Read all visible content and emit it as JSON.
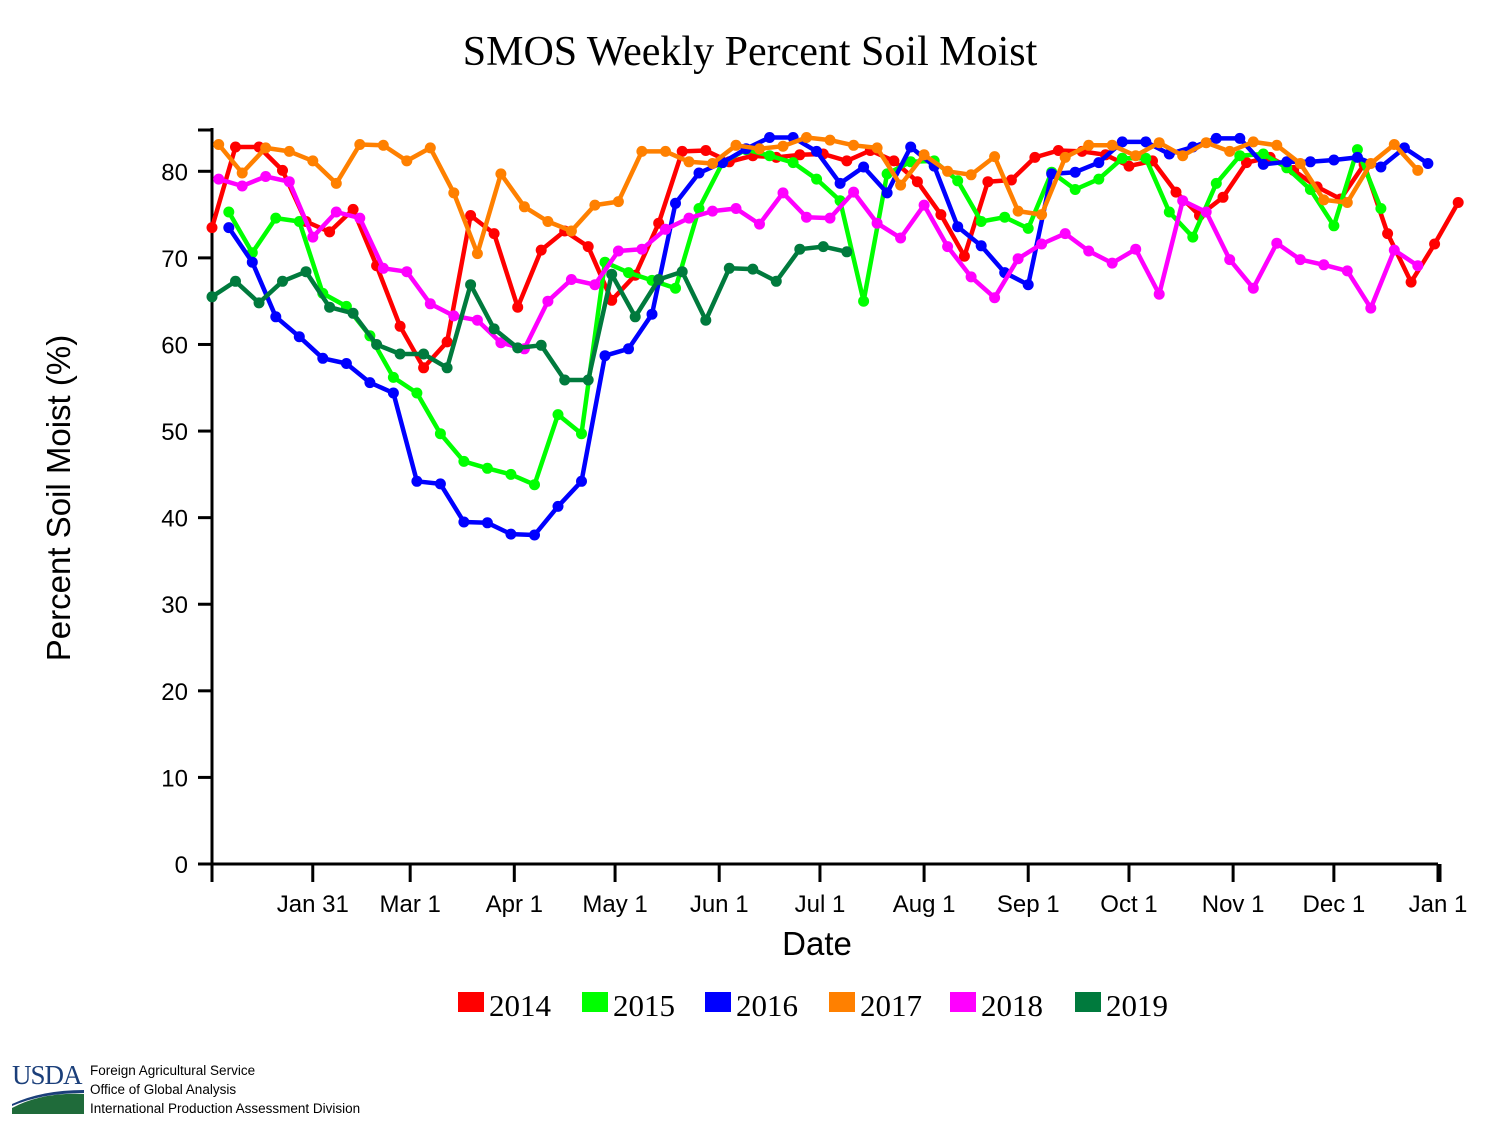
{
  "chart_data": {
    "type": "line",
    "title": "SMOS Weekly Percent Soil Moist",
    "xlabel": "Date",
    "ylabel": "Percent Soil Moist (%)",
    "ylim": [
      0,
      85
    ],
    "xlim": [
      1,
      366
    ],
    "yticks": [
      0,
      10,
      20,
      30,
      40,
      50,
      60,
      70,
      80
    ],
    "xticks": [
      {
        "label": "Jan 31",
        "day": 31
      },
      {
        "label": "Mar 1",
        "day": 60
      },
      {
        "label": "Apr 1",
        "day": 91
      },
      {
        "label": "May 1",
        "day": 121
      },
      {
        "label": "Jun 1",
        "day": 152
      },
      {
        "label": "Jul 1",
        "day": 182
      },
      {
        "label": "Aug 1",
        "day": 213
      },
      {
        "label": "Sep 1",
        "day": 244
      },
      {
        "label": "Oct 1",
        "day": 274
      },
      {
        "label": "Nov 1",
        "day": 305
      },
      {
        "label": "Dec 1",
        "day": 335
      },
      {
        "label": "Jan 1",
        "day": 366
      }
    ],
    "series": [
      {
        "name": "2014",
        "color": "#ff0000",
        "start_day": 1,
        "step_days": 7,
        "values": [
          73.5,
          82.8,
          82.8,
          80.1,
          74.2,
          73.0,
          75.6,
          69.1,
          62.1,
          57.3,
          60.3,
          74.9,
          72.8,
          64.3,
          70.9,
          73.1,
          71.3,
          65.1,
          68.0,
          74.0,
          82.3,
          82.4,
          81.1,
          81.8,
          81.6,
          81.9,
          82.0,
          81.2,
          82.4,
          81.2,
          78.8,
          75.0,
          70.2,
          78.8,
          79.0,
          81.6,
          82.4,
          82.3,
          81.9,
          80.6,
          81.2,
          77.6,
          74.9,
          77.0,
          81.0,
          81.6,
          80.1,
          78.2,
          76.8,
          80.8,
          72.8,
          67.2,
          71.6,
          76.4
        ]
      },
      {
        "name": "2015",
        "color": "#00ff00",
        "start_day": 6,
        "step_days": 7,
        "values": [
          75.3,
          70.6,
          74.6,
          74.2,
          65.9,
          64.4,
          61.0,
          56.2,
          54.4,
          49.7,
          46.5,
          45.7,
          45.0,
          43.8,
          51.9,
          49.7,
          69.5,
          68.3,
          67.4,
          66.5,
          75.7,
          81.0,
          82.5,
          81.8,
          81.0,
          79.1,
          76.6,
          65.0,
          79.7,
          81.1,
          81.2,
          78.9,
          74.2,
          74.7,
          73.4,
          79.9,
          77.9,
          79.1,
          81.5,
          81.5,
          75.3,
          72.4,
          78.6,
          81.8,
          82.0,
          80.4,
          77.9,
          73.7,
          82.5,
          75.7
        ]
      },
      {
        "name": "2016",
        "color": "#0000ff",
        "start_day": 6,
        "step_days": 7,
        "values": [
          73.5,
          69.5,
          63.2,
          60.9,
          58.4,
          57.8,
          55.6,
          54.4,
          44.2,
          43.9,
          39.5,
          39.4,
          38.1,
          38.0,
          41.3,
          44.2,
          58.7,
          59.5,
          63.5,
          76.3,
          79.8,
          81.0,
          82.6,
          83.9,
          83.9,
          82.3,
          78.6,
          80.5,
          77.5,
          82.8,
          80.6,
          73.6,
          71.4,
          68.3,
          66.9,
          79.7,
          79.9,
          81.0,
          83.4,
          83.4,
          82.0,
          82.8,
          83.8,
          83.8,
          80.8,
          81.1,
          81.1,
          81.3,
          81.6,
          80.5,
          82.7,
          80.9
        ]
      },
      {
        "name": "2017",
        "color": "#ff8000",
        "start_day": 3,
        "step_days": 7,
        "values": [
          83.1,
          79.8,
          82.7,
          82.3,
          81.2,
          78.6,
          83.1,
          83.0,
          81.2,
          82.7,
          77.5,
          70.5,
          79.7,
          75.9,
          74.2,
          73.1,
          76.1,
          76.5,
          82.3,
          82.3,
          81.1,
          80.9,
          83.0,
          82.6,
          82.9,
          83.9,
          83.6,
          83.0,
          82.7,
          78.4,
          81.9,
          80.0,
          79.6,
          81.7,
          75.4,
          75.0,
          81.6,
          83.0,
          83.0,
          81.8,
          83.3,
          81.8,
          83.3,
          82.3,
          83.4,
          83.0,
          80.9,
          76.7,
          76.4,
          80.9,
          83.1,
          80.1
        ]
      },
      {
        "name": "2018",
        "color": "#ff00ff",
        "start_day": 3,
        "step_days": 7,
        "values": [
          79.1,
          78.3,
          79.4,
          78.8,
          72.4,
          75.3,
          74.6,
          68.8,
          68.4,
          64.7,
          63.3,
          62.8,
          60.2,
          59.5,
          65.0,
          67.5,
          66.9,
          70.8,
          71.0,
          73.3,
          74.6,
          75.4,
          75.7,
          73.9,
          77.5,
          74.7,
          74.6,
          77.6,
          74.0,
          72.3,
          76.1,
          71.3,
          67.8,
          65.4,
          69.9,
          71.6,
          72.8,
          70.8,
          69.4,
          71.0,
          65.8,
          76.6,
          75.3,
          69.8,
          66.5,
          71.7,
          69.8,
          69.2,
          68.5,
          64.2,
          70.9,
          69.1
        ]
      },
      {
        "name": "2019",
        "color": "#007a3d",
        "start_day": 1,
        "step_days": 7,
        "values": [
          65.5,
          67.3,
          64.8,
          67.3,
          68.4,
          64.3,
          63.6,
          60.0,
          58.9,
          58.9,
          57.3,
          66.9,
          61.8,
          59.6,
          59.9,
          55.9,
          55.9,
          68.1,
          63.2,
          67.5,
          68.4,
          62.8,
          68.8,
          68.7,
          67.3,
          71.0,
          71.3,
          70.7
        ]
      }
    ],
    "legend": {
      "position": "bottom-center"
    }
  },
  "footer": {
    "logo_text": "USDA",
    "lines": [
      "Foreign Agricultural Service",
      "Office of Global Analysis",
      "International Production Assessment Division"
    ]
  }
}
